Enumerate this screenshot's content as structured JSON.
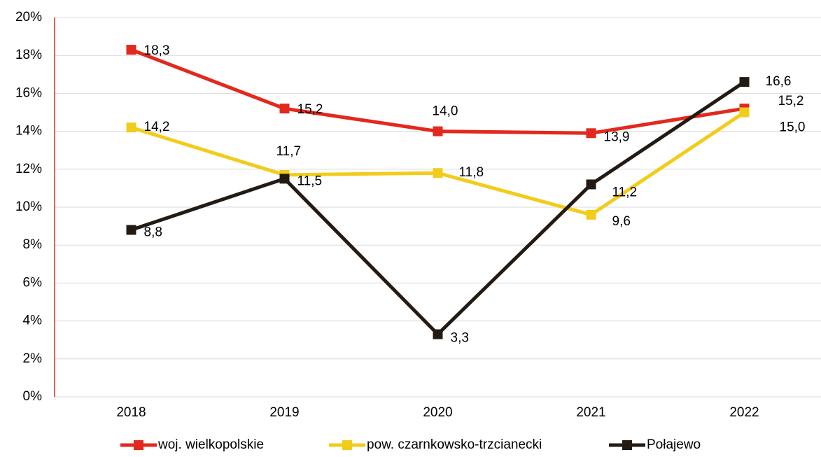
{
  "chart_data": {
    "type": "line",
    "categories": [
      "2018",
      "2019",
      "2020",
      "2021",
      "2022"
    ],
    "series": [
      {
        "name": "woj. wielkopolskie",
        "color": "#e3281d",
        "values": [
          18.3,
          15.2,
          14.0,
          13.9,
          15.2
        ],
        "value_labels": [
          "18,3",
          "15,2",
          "14,0",
          "13,9",
          "15,2"
        ]
      },
      {
        "name": "pow. czarnkowsko-trzcianecki",
        "color": "#f2cc1b",
        "values": [
          14.2,
          11.7,
          11.8,
          9.6,
          15.0
        ],
        "value_labels": [
          "14,2",
          "11,7",
          "11,8",
          "9,6",
          "15,0"
        ]
      },
      {
        "name": "Połajewo",
        "color": "#231a13",
        "values": [
          8.8,
          11.5,
          3.3,
          11.2,
          16.6
        ],
        "value_labels": [
          "8,8",
          "11,5",
          "3,3",
          "11,2",
          "16,6"
        ]
      }
    ],
    "ylim": [
      0,
      20
    ],
    "yticks": [
      {
        "value": 0,
        "label": "0%"
      },
      {
        "value": 2,
        "label": "2%"
      },
      {
        "value": 4,
        "label": "4%"
      },
      {
        "value": 6,
        "label": "6%"
      },
      {
        "value": 8,
        "label": "8%"
      },
      {
        "value": 10,
        "label": "10%"
      },
      {
        "value": 12,
        "label": "12%"
      },
      {
        "value": 14,
        "label": "14%"
      },
      {
        "value": 16,
        "label": "16%"
      },
      {
        "value": 18,
        "label": "18%"
      },
      {
        "value": 20,
        "label": "20%"
      }
    ],
    "grid": true,
    "legend": "bottom"
  }
}
